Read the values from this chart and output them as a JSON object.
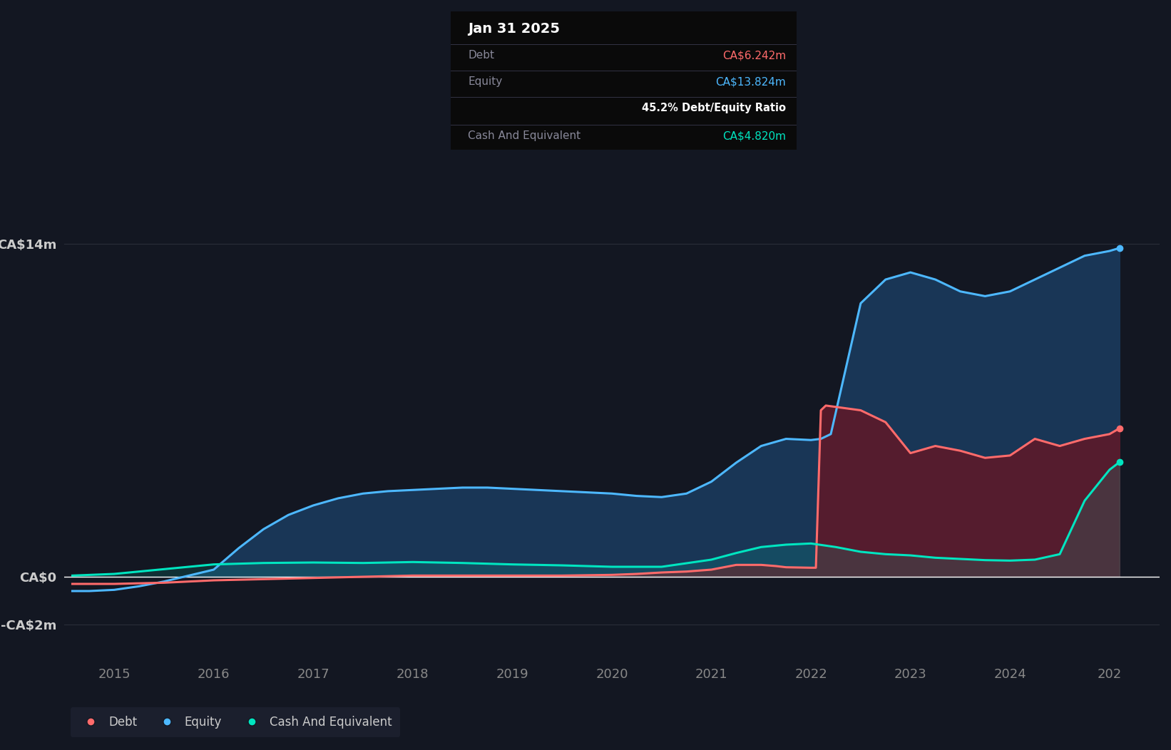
{
  "bg_color": "#131722",
  "plot_bg_color": "#131722",
  "grid_color": "#2a2e39",
  "title_box": {
    "date": "Jan 31 2025",
    "debt_label": "Debt",
    "debt_value": "CA$6.242m",
    "debt_color": "#ff6b6b",
    "equity_label": "Equity",
    "equity_value": "CA$13.824m",
    "equity_color": "#4db8ff",
    "ratio_text": "45.2% Debt/Equity Ratio",
    "ratio_color": "#ffffff",
    "cash_label": "Cash And Equivalent",
    "cash_value": "CA$4.820m",
    "cash_color": "#00e5c0",
    "label_color": "#888899",
    "box_bg": "#0a0a0a"
  },
  "ylim": [
    -3.5,
    17
  ],
  "xlim": [
    2014.5,
    2025.5
  ],
  "equity_color": "#4db8ff",
  "debt_color": "#ff6b6b",
  "cash_color": "#00e5c0",
  "equity_fill": "#1a3a5c",
  "debt_fill_color": "#5c1a2a",
  "legend_bg": "#1e2230",
  "equity_data": {
    "x": [
      2014.58,
      2014.75,
      2015.0,
      2015.25,
      2015.5,
      2015.75,
      2016.0,
      2016.25,
      2016.5,
      2016.75,
      2017.0,
      2017.25,
      2017.5,
      2017.75,
      2018.0,
      2018.25,
      2018.5,
      2018.75,
      2019.0,
      2019.25,
      2019.5,
      2019.75,
      2020.0,
      2020.25,
      2020.5,
      2020.75,
      2021.0,
      2021.25,
      2021.5,
      2021.75,
      2022.0,
      2022.1,
      2022.2,
      2022.5,
      2022.75,
      2023.0,
      2023.25,
      2023.5,
      2023.75,
      2024.0,
      2024.25,
      2024.5,
      2024.75,
      2025.0,
      2025.1
    ],
    "y": [
      -0.6,
      -0.6,
      -0.55,
      -0.4,
      -0.2,
      0.05,
      0.3,
      1.2,
      2.0,
      2.6,
      3.0,
      3.3,
      3.5,
      3.6,
      3.65,
      3.7,
      3.75,
      3.75,
      3.7,
      3.65,
      3.6,
      3.55,
      3.5,
      3.4,
      3.35,
      3.5,
      4.0,
      4.8,
      5.5,
      5.8,
      5.75,
      5.8,
      6.0,
      11.5,
      12.5,
      12.8,
      12.5,
      12.0,
      11.8,
      12.0,
      12.5,
      13.0,
      13.5,
      13.7,
      13.824
    ]
  },
  "debt_data": {
    "x": [
      2014.58,
      2015.0,
      2015.5,
      2016.0,
      2016.5,
      2017.0,
      2017.5,
      2018.0,
      2018.5,
      2019.0,
      2019.5,
      2020.0,
      2020.25,
      2020.5,
      2020.75,
      2021.0,
      2021.25,
      2021.5,
      2021.65,
      2021.75,
      2022.0,
      2022.05,
      2022.1,
      2022.15,
      2022.5,
      2022.75,
      2023.0,
      2023.25,
      2023.5,
      2023.75,
      2024.0,
      2024.25,
      2024.5,
      2024.75,
      2025.0,
      2025.1
    ],
    "y": [
      -0.3,
      -0.3,
      -0.25,
      -0.15,
      -0.1,
      -0.05,
      0.0,
      0.05,
      0.05,
      0.05,
      0.05,
      0.08,
      0.12,
      0.18,
      0.22,
      0.3,
      0.5,
      0.5,
      0.45,
      0.4,
      0.38,
      0.38,
      7.0,
      7.2,
      7.0,
      6.5,
      5.2,
      5.5,
      5.3,
      5.0,
      5.1,
      5.8,
      5.5,
      5.8,
      6.0,
      6.242
    ]
  },
  "cash_data": {
    "x": [
      2014.58,
      2015.0,
      2015.5,
      2016.0,
      2016.5,
      2017.0,
      2017.5,
      2018.0,
      2018.5,
      2019.0,
      2019.5,
      2020.0,
      2020.5,
      2021.0,
      2021.25,
      2021.5,
      2021.75,
      2022.0,
      2022.25,
      2022.5,
      2022.75,
      2023.0,
      2023.25,
      2023.5,
      2023.75,
      2024.0,
      2024.25,
      2024.5,
      2024.75,
      2025.0,
      2025.1
    ],
    "y": [
      0.05,
      0.12,
      0.32,
      0.52,
      0.58,
      0.6,
      0.58,
      0.62,
      0.58,
      0.52,
      0.48,
      0.42,
      0.42,
      0.72,
      1.0,
      1.25,
      1.35,
      1.4,
      1.25,
      1.05,
      0.95,
      0.9,
      0.8,
      0.75,
      0.7,
      0.68,
      0.72,
      0.95,
      3.2,
      4.5,
      4.82
    ]
  }
}
